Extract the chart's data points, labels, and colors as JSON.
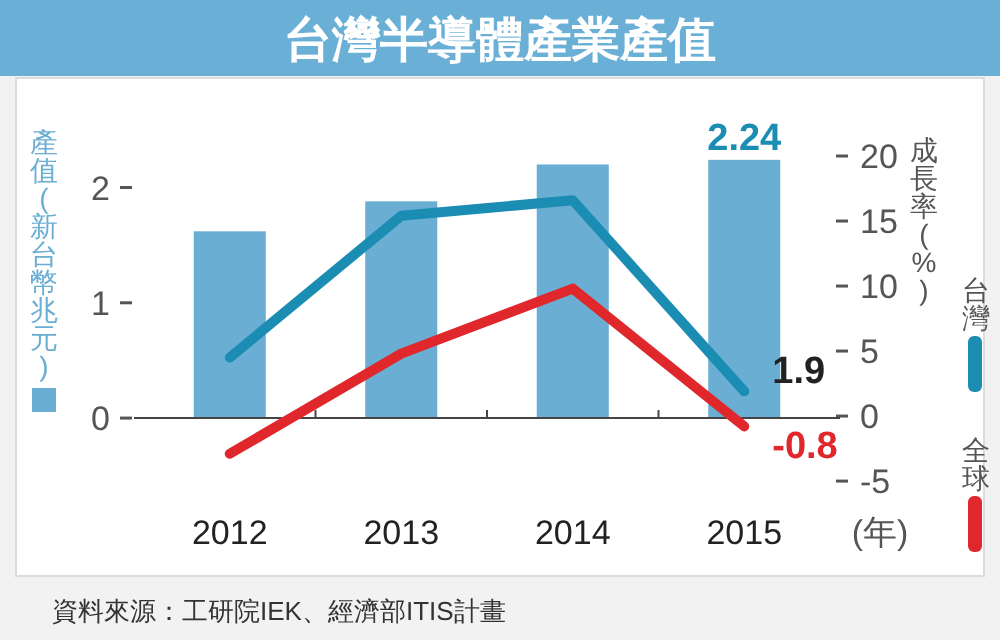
{
  "chart_data": {
    "type": "bar",
    "title": "台灣半導體產業產值",
    "categories": [
      "2012",
      "2013",
      "2014",
      "2015"
    ],
    "series": [
      {
        "color": "#6aaed3",
        "values": [
          1.62,
          1.88,
          2.2,
          2.24
        ],
        "value_labels": [
          null,
          null,
          null,
          "2.24"
        ]
      },
      {
        "type": "line",
        "name": "台灣",
        "axis": "y2",
        "color": "#1b8db3",
        "values": [
          4.5,
          15.4,
          16.6,
          1.9
        ],
        "value_labels": [
          null,
          null,
          null,
          "1.9"
        ]
      },
      {
        "type": "line",
        "name": "全球",
        "axis": "y2",
        "color": "#e0282c",
        "values": [
          -2.9,
          4.8,
          9.8,
          -0.8
        ],
        "value_labels": [
          null,
          null,
          null,
          "-0.8"
        ]
      }
    ],
    "ylabel": "產值(新台幣兆元)",
    "y2label": "成長率(%)",
    "xlabel": "(年)",
    "ylim": [
      -1.37,
      2.95
    ],
    "yticks": [
      0,
      1,
      2
    ],
    "y2lim": [
      -12.3,
      26
    ],
    "y2ticks": [
      -5,
      0,
      5,
      10,
      15,
      20
    ],
    "legend": "right",
    "annotations": [
      "資料來源：工研院IEK、經濟部ITIS計畫"
    ]
  }
}
